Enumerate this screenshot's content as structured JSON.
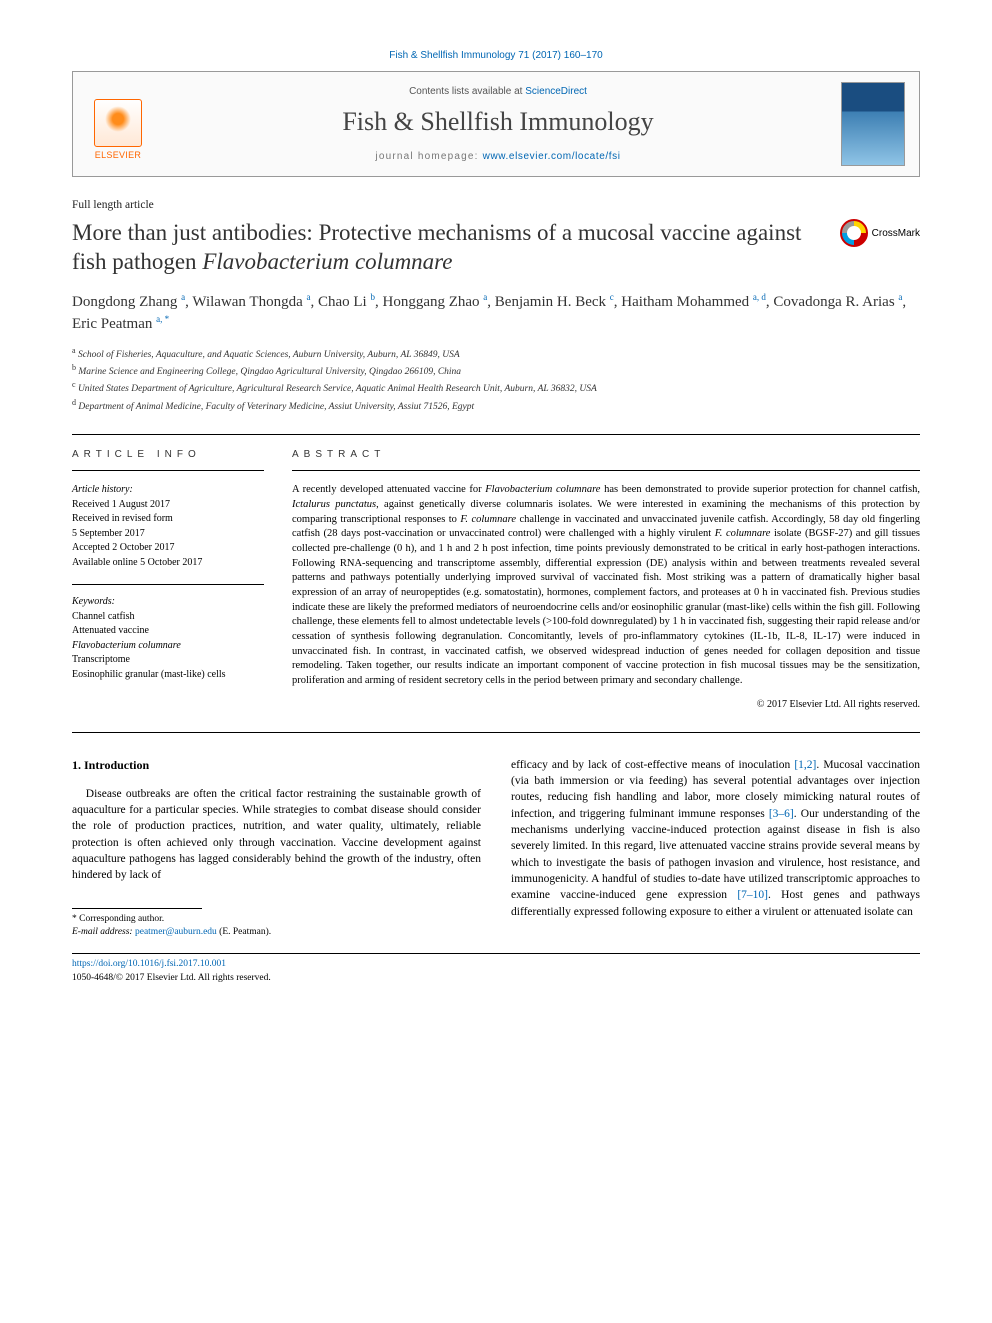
{
  "citation": "Fish & Shellfish Immunology 71 (2017) 160–170",
  "header": {
    "contents_prefix": "Contents lists available at ",
    "contents_link": "ScienceDirect",
    "journal_name": "Fish & Shellfish Immunology",
    "homepage_prefix": "journal homepage: ",
    "homepage_link": "www.elsevier.com/locate/fsi",
    "publisher_logo_text": "ELSEVIER"
  },
  "article_type": "Full length article",
  "title_plain": "More than just antibodies: Protective mechanisms of a mucosal vaccine against fish pathogen ",
  "title_italic": "Flavobacterium columnare",
  "crossmark_label": "CrossMark",
  "authors": [
    {
      "name": "Dongdong Zhang",
      "affil": "a"
    },
    {
      "name": "Wilawan Thongda",
      "affil": "a"
    },
    {
      "name": "Chao Li",
      "affil": "b"
    },
    {
      "name": "Honggang Zhao",
      "affil": "a"
    },
    {
      "name": "Benjamin H. Beck",
      "affil": "c"
    },
    {
      "name": "Haitham Mohammed",
      "affil": "a, d"
    },
    {
      "name": "Covadonga R. Arias",
      "affil": "a"
    },
    {
      "name": "Eric Peatman",
      "affil": "a, *"
    }
  ],
  "affiliations": [
    {
      "key": "a",
      "text": "School of Fisheries, Aquaculture, and Aquatic Sciences, Auburn University, Auburn, AL 36849, USA"
    },
    {
      "key": "b",
      "text": "Marine Science and Engineering College, Qingdao Agricultural University, Qingdao 266109, China"
    },
    {
      "key": "c",
      "text": "United States Department of Agriculture, Agricultural Research Service, Aquatic Animal Health Research Unit, Auburn, AL 36832, USA"
    },
    {
      "key": "d",
      "text": "Department of Animal Medicine, Faculty of Veterinary Medicine, Assiut University, Assiut 71526, Egypt"
    }
  ],
  "info": {
    "heading": "ARTICLE INFO",
    "history_label": "Article history:",
    "history": [
      "Received 1 August 2017",
      "Received in revised form",
      "5 September 2017",
      "Accepted 2 October 2017",
      "Available online 5 October 2017"
    ],
    "keywords_label": "Keywords:",
    "keywords": [
      "Channel catfish",
      "Attenuated vaccine",
      "Flavobacterium columnare",
      "Transcriptome",
      "Eosinophilic granular (mast-like) cells"
    ]
  },
  "abstract": {
    "heading": "ABSTRACT",
    "text": "A recently developed attenuated vaccine for Flavobacterium columnare has been demonstrated to provide superior protection for channel catfish, Ictalurus punctatus, against genetically diverse columnaris isolates. We were interested in examining the mechanisms of this protection by comparing transcriptional responses to F. columnare challenge in vaccinated and unvaccinated juvenile catfish. Accordingly, 58 day old fingerling catfish (28 days post-vaccination or unvaccinated control) were challenged with a highly virulent F. columnare isolate (BGSF-27) and gill tissues collected pre-challenge (0 h), and 1 h and 2 h post infection, time points previously demonstrated to be critical in early host-pathogen interactions. Following RNA-sequencing and transcriptome assembly, differential expression (DE) analysis within and between treatments revealed several patterns and pathways potentially underlying improved survival of vaccinated fish. Most striking was a pattern of dramatically higher basal expression of an array of neuropeptides (e.g. somatostatin), hormones, complement factors, and proteases at 0 h in vaccinated fish. Previous studies indicate these are likely the preformed mediators of neuroendocrine cells and/or eosinophilic granular (mast-like) cells within the fish gill. Following challenge, these elements fell to almost undetectable levels (>100-fold downregulated) by 1 h in vaccinated fish, suggesting their rapid release and/or cessation of synthesis following degranulation. Concomitantly, levels of pro-inflammatory cytokines (IL-1b, IL-8, IL-17) were induced in unvaccinated fish. In contrast, in vaccinated catfish, we observed widespread induction of genes needed for collagen deposition and tissue remodeling. Taken together, our results indicate an important component of vaccine protection in fish mucosal tissues may be the sensitization, proliferation and arming of resident secretory cells in the period between primary and secondary challenge.",
    "copyright": "© 2017 Elsevier Ltd. All rights reserved."
  },
  "body": {
    "section_number": "1.",
    "section_title": "Introduction",
    "col1": "Disease outbreaks are often the critical factor restraining the sustainable growth of aquaculture for a particular species. While strategies to combat disease should consider the role of production practices, nutrition, and water quality, ultimately, reliable protection is often achieved only through vaccination. Vaccine development against aquaculture pathogens has lagged considerably behind the growth of the industry, often hindered by lack of",
    "col2_part1": "efficacy and by lack of cost-effective means of inoculation ",
    "col2_ref1": "[1,2]",
    "col2_part2": ". Mucosal vaccination (via bath immersion or via feeding) has several potential advantages over injection routes, reducing fish handling and labor, more closely mimicking natural routes of infection, and triggering fulminant immune responses ",
    "col2_ref2": "[3–6]",
    "col2_part3": ". Our understanding of the mechanisms underlying vaccine-induced protection against disease in fish is also severely limited. In this regard, live attenuated vaccine strains provide several means by which to investigate the basis of pathogen invasion and virulence, host resistance, and immunogenicity. A handful of studies to-date have utilized transcriptomic approaches to examine vaccine-induced gene expression ",
    "col2_ref3": "[7–10]",
    "col2_part4": ". Host genes and pathways differentially expressed following exposure to either a virulent or attenuated isolate can"
  },
  "corresponding": {
    "marker": "*",
    "label": "Corresponding author.",
    "email_label": "E-mail address:",
    "email": "peatmer@auburn.edu",
    "email_suffix": "(E. Peatman)."
  },
  "footer": {
    "doi": "https://doi.org/10.1016/j.fsi.2017.10.001",
    "issn_copyright": "1050-4648/© 2017 Elsevier Ltd. All rights reserved."
  },
  "colors": {
    "link": "#0066b3",
    "elsevier_orange": "#ff6600",
    "text": "#000000",
    "muted": "#555555"
  }
}
